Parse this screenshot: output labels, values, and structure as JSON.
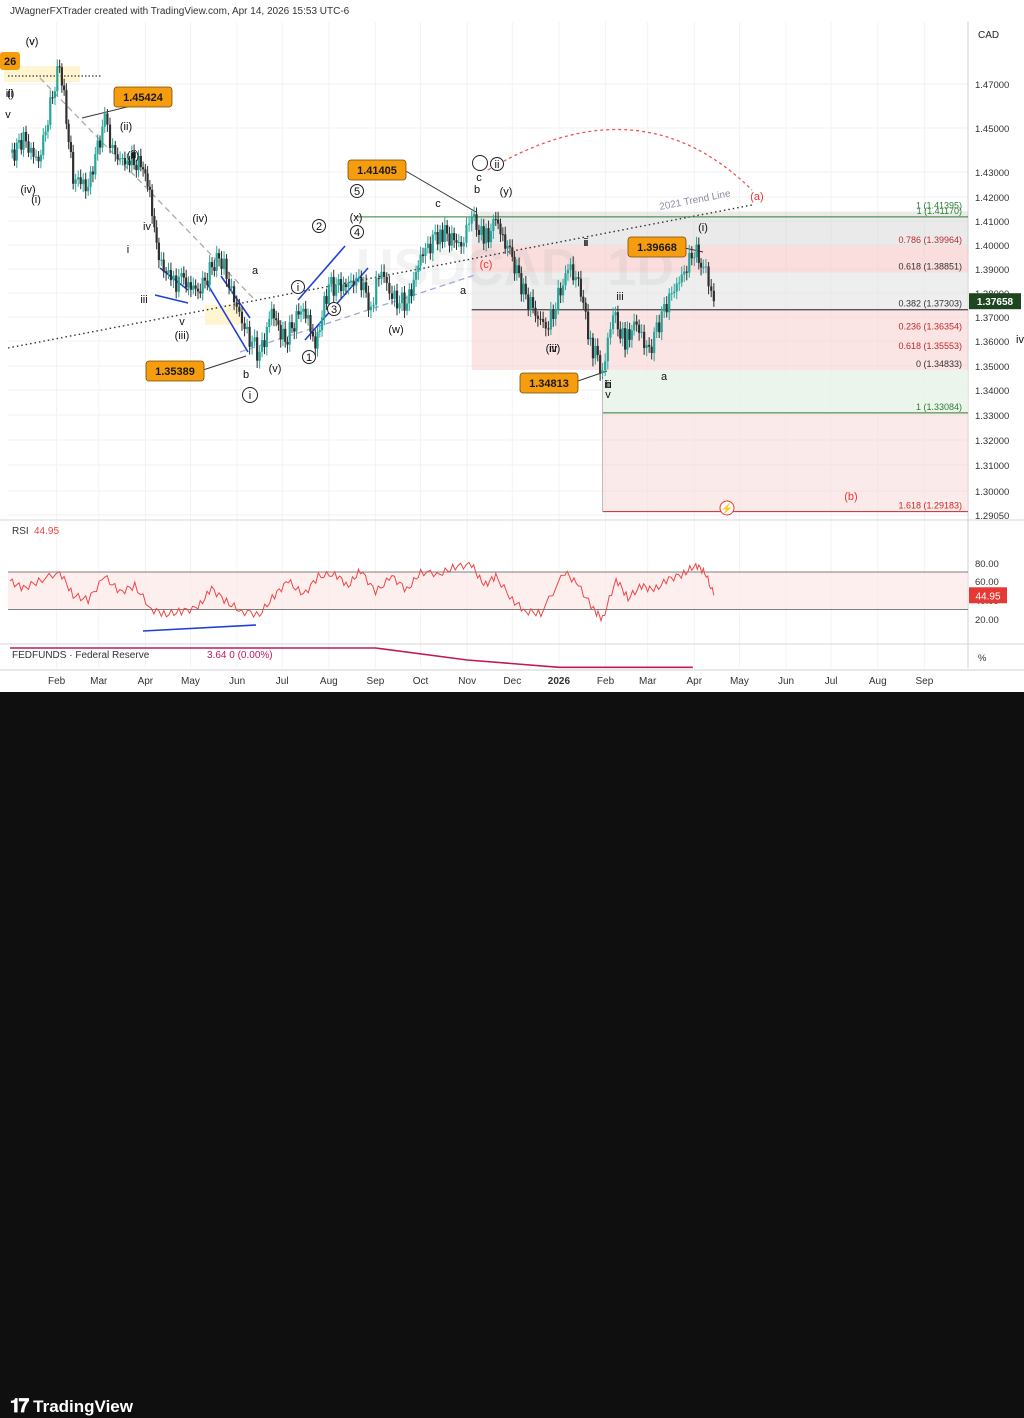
{
  "header": {
    "attribution": "JWagnerFXTrader created with TradingView.com, Apr 14, 2026 15:53 UTC-6",
    "currency": "CAD",
    "watermark": "USDCAD, 1D"
  },
  "footer": {
    "brand": "TradingView"
  },
  "colors": {
    "up": "#26a69a",
    "down": "#ef5350",
    "badge": "#f59d0e",
    "blue": "#1f3fd6",
    "rsi": "#ef4545",
    "fed": "#c2185b",
    "green_line": "#2e7d32",
    "last": "#1e4620"
  },
  "chart_data": [
    {
      "type": "line",
      "title": "USDCAD, 1D",
      "price_axis": {
        "ticks": [
          "1.47000",
          "1.45000",
          "1.43000",
          "1.42000",
          "1.41000",
          "1.40000",
          "1.39000",
          "1.38000",
          "1.37000",
          "1.36000",
          "1.35000",
          "1.34000",
          "1.33000",
          "1.32000",
          "1.31000",
          "1.30000",
          "1.29050"
        ]
      },
      "time_axis": {
        "ticks": [
          "Feb",
          "Mar",
          "Apr",
          "May",
          "Jun",
          "Jul",
          "Aug",
          "Sep",
          "Oct",
          "Nov",
          "Dec",
          "2026",
          "Feb",
          "Mar",
          "Apr",
          "May",
          "Jun",
          "Jul",
          "Aug",
          "Sep"
        ]
      },
      "last_price": "1.37658",
      "series": [
        {
          "name": "USDCAD",
          "points": [
            [
              "2025-01-01",
              1.437
            ],
            [
              "2025-01-10",
              1.445
            ],
            [
              "2025-01-20",
              1.434
            ],
            [
              "2025-02-03",
              1.48
            ],
            [
              "2025-02-12",
              1.428
            ],
            [
              "2025-02-22",
              1.424
            ],
            [
              "2025-03-05",
              1.454
            ],
            [
              "2025-03-12",
              1.436
            ],
            [
              "2025-03-20",
              1.436
            ],
            [
              "2025-04-01",
              1.432
            ],
            [
              "2025-04-10",
              1.395
            ],
            [
              "2025-04-18",
              1.384
            ],
            [
              "2025-04-25",
              1.386
            ],
            [
              "2025-05-06",
              1.38
            ],
            [
              "2025-05-20",
              1.396
            ],
            [
              "2025-05-30",
              1.378
            ],
            [
              "2025-06-06",
              1.365
            ],
            [
              "2025-06-16",
              1.354
            ],
            [
              "2025-06-24",
              1.372
            ],
            [
              "2025-07-03",
              1.36
            ],
            [
              "2025-07-15",
              1.375
            ],
            [
              "2025-07-23",
              1.358
            ],
            [
              "2025-08-01",
              1.383
            ],
            [
              "2025-08-14",
              1.383
            ],
            [
              "2025-08-21",
              1.386
            ],
            [
              "2025-08-29",
              1.375
            ],
            [
              "2025-09-05",
              1.39
            ],
            [
              "2025-09-12",
              1.378
            ],
            [
              "2025-09-22",
              1.375
            ],
            [
              "2025-10-01",
              1.395
            ],
            [
              "2025-10-14",
              1.406
            ],
            [
              "2025-10-28",
              1.4
            ],
            [
              "2025-11-04",
              1.413
            ],
            [
              "2025-11-12",
              1.401
            ],
            [
              "2025-11-20",
              1.41
            ],
            [
              "2025-12-01",
              1.394
            ],
            [
              "2025-12-10",
              1.379
            ],
            [
              "2025-12-18",
              1.37
            ],
            [
              "2025-12-25",
              1.366
            ],
            [
              "2026-01-07",
              1.39
            ],
            [
              "2026-01-14",
              1.385
            ],
            [
              "2026-01-22",
              1.36
            ],
            [
              "2026-01-30",
              1.348
            ],
            [
              "2026-02-06",
              1.372
            ],
            [
              "2026-02-14",
              1.358
            ],
            [
              "2026-02-20",
              1.368
            ],
            [
              "2026-03-02",
              1.356
            ],
            [
              "2026-03-12",
              1.374
            ],
            [
              "2026-03-22",
              1.385
            ],
            [
              "2026-04-01",
              1.397
            ],
            [
              "2026-04-07",
              1.392
            ],
            [
              "2026-04-14",
              1.3766
            ]
          ]
        }
      ],
      "price_badges": [
        "1.45424",
        "1.41405",
        "1.39668",
        "1.35389",
        "1.34813"
      ],
      "wave_labels": [
        "(v)",
        "ii)",
        "v",
        "(iv)",
        "(i)",
        "(ii)",
        "ii",
        "i",
        "iv",
        "iii",
        "v",
        "(iii)",
        "(iv)",
        "a",
        "b",
        "(v)",
        "i",
        "1",
        "2",
        "3",
        "4",
        "5",
        "(w)",
        "(x)",
        "c",
        "a",
        "b",
        "c",
        "(y)",
        "ii",
        "(a)",
        "(c)",
        "i",
        "iv",
        "iii",
        "a",
        "b",
        "v",
        "(i)",
        "(b)",
        "(ii)",
        "(iii)",
        "ii",
        "iii",
        "iv",
        "v",
        "(i"
      ],
      "trend_line_label": "2021 Trend Line",
      "fib_levels": [
        {
          "label": "1 (1.41395)",
          "value": 1.41395
        },
        {
          "label": "1 (1.41170)",
          "value": 1.4117
        },
        {
          "label": "0.786 (1.39964)",
          "value": 1.39964
        },
        {
          "label": "0.618 (1.38851)",
          "value": 1.38851
        },
        {
          "label": "0.382 (1.37303)",
          "value": 1.37303
        },
        {
          "label": "0.236 (1.36354)",
          "value": 1.36354
        },
        {
          "label": "0.618 (1.35553)",
          "value": 1.35553
        },
        {
          "label": "0 (1.34833)",
          "value": 1.34833
        },
        {
          "label": "1 (1.33084)",
          "value": 1.33084
        },
        {
          "label": "1.618 (1.29183)",
          "value": 1.29183
        }
      ]
    },
    {
      "type": "line",
      "title": "RSI",
      "value_label": "44.95",
      "ylim": [
        10,
        90
      ],
      "ticks": [
        "80.00",
        "60.00",
        "40.00",
        "20.00"
      ],
      "bands": [
        70,
        30
      ],
      "series": [
        {
          "name": "RSI",
          "points": [
            [
              "2025-01-01",
              60
            ],
            [
              "2025-01-10",
              52
            ],
            [
              "2025-01-20",
              60
            ],
            [
              "2025-02-03",
              70
            ],
            [
              "2025-02-12",
              45
            ],
            [
              "2025-02-22",
              40
            ],
            [
              "2025-03-05",
              65
            ],
            [
              "2025-03-15",
              48
            ],
            [
              "2025-03-25",
              55
            ],
            [
              "2025-04-05",
              30
            ],
            [
              "2025-04-15",
              25
            ],
            [
              "2025-04-25",
              28
            ],
            [
              "2025-05-06",
              32
            ],
            [
              "2025-05-15",
              52
            ],
            [
              "2025-05-25",
              38
            ],
            [
              "2025-06-04",
              28
            ],
            [
              "2025-06-16",
              25
            ],
            [
              "2025-06-26",
              45
            ],
            [
              "2025-07-05",
              60
            ],
            [
              "2025-07-15",
              45
            ],
            [
              "2025-07-25",
              65
            ],
            [
              "2025-08-05",
              68
            ],
            [
              "2025-08-14",
              55
            ],
            [
              "2025-08-22",
              72
            ],
            [
              "2025-09-01",
              48
            ],
            [
              "2025-09-12",
              65
            ],
            [
              "2025-09-22",
              50
            ],
            [
              "2025-10-01",
              70
            ],
            [
              "2025-10-14",
              68
            ],
            [
              "2025-10-24",
              76
            ],
            [
              "2025-11-04",
              78
            ],
            [
              "2025-11-12",
              55
            ],
            [
              "2025-11-20",
              65
            ],
            [
              "2025-12-01",
              40
            ],
            [
              "2025-12-10",
              28
            ],
            [
              "2025-12-20",
              26
            ],
            [
              "2026-01-05",
              70
            ],
            [
              "2026-01-14",
              55
            ],
            [
              "2026-01-24",
              30
            ],
            [
              "2026-01-30",
              20
            ],
            [
              "2026-02-08",
              62
            ],
            [
              "2026-02-16",
              42
            ],
            [
              "2026-02-25",
              55
            ],
            [
              "2026-03-05",
              50
            ],
            [
              "2026-03-15",
              62
            ],
            [
              "2026-03-25",
              68
            ],
            [
              "2026-04-02",
              78
            ],
            [
              "2026-04-08",
              70
            ],
            [
              "2026-04-14",
              44.95
            ]
          ]
        }
      ]
    },
    {
      "type": "line",
      "title": "FEDFUNDS · Federal Reserve",
      "value_label": "3.64  0 (0.00%)",
      "axis_unit": "%",
      "series": [
        {
          "name": "FEDFUNDS",
          "points": [
            [
              "2025-01-01",
              4.33
            ],
            [
              "2025-09-01",
              4.33
            ],
            [
              "2025-11-01",
              3.9
            ],
            [
              "2026-01-01",
              3.64
            ],
            [
              "2026-03-31",
              3.64
            ]
          ]
        }
      ]
    }
  ]
}
